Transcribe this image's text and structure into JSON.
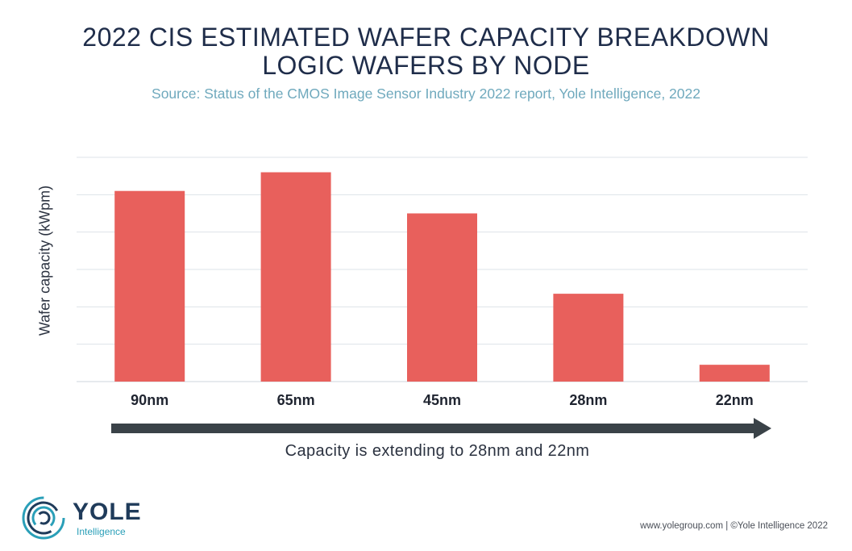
{
  "header": {
    "title_line1": "2022 CIS ESTIMATED WAFER CAPACITY BREAKDOWN",
    "title_line2": "LOGIC WAFERS BY NODE",
    "subtitle": "Source: Status of the CMOS Image Sensor Industry 2022 report, Yole Intelligence, 2022"
  },
  "chart_data": {
    "type": "bar",
    "title": "2022 CIS ESTIMATED WAFER CAPACITY BREAKDOWN - LOGIC WAFERS BY NODE",
    "xlabel": "",
    "ylabel": "Wafer capacity (kWpm)",
    "categories": [
      "90nm",
      "65nm",
      "45nm",
      "28nm",
      "22nm"
    ],
    "values": [
      5.1,
      5.6,
      4.5,
      2.35,
      0.45
    ],
    "ylim": [
      0,
      6
    ],
    "gridlines": 6,
    "grid": true,
    "bar_color": "#e8605c",
    "grid_color": "#dde3e8"
  },
  "annotation": {
    "arrow_caption": "Capacity is extending to 28nm and 22nm",
    "arrow_color": "#3a4248"
  },
  "branding": {
    "logo_name": "YOLE",
    "logo_sub": "Intelligence",
    "logo_icon": "concentric-rings-logo",
    "footer": "www.yolegroup.com | ©Yole Intelligence 2022"
  }
}
